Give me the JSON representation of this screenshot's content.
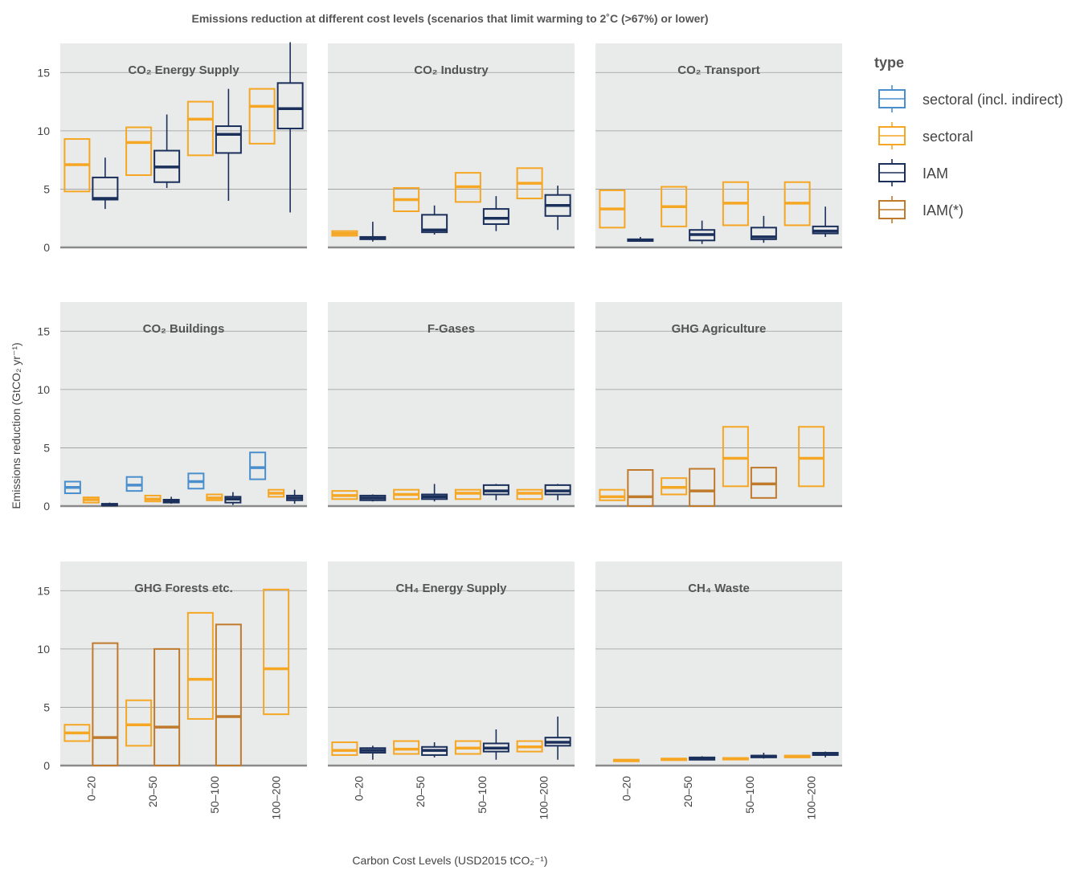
{
  "chart_data": {
    "type": "box",
    "title": "Emissions reduction at different cost levels (scenarios that limit warming to 2˚C (>67%) or lower)",
    "xlabel": "Carbon Cost Levels (USD2015 tCO₂⁻¹)",
    "ylabel": "Emissions reduction (GtCO₂ yr⁻¹)",
    "ylim": [
      0,
      17.5
    ],
    "yticks": [
      0,
      5,
      10,
      15
    ],
    "categories": [
      "0–20",
      "20–50",
      "50–100",
      "100–200"
    ],
    "legend": {
      "title": "type",
      "placement": "right",
      "entries": [
        {
          "key": "sectoral_indirect",
          "label": "sectoral (incl. indirect)",
          "color": "#4a8fcd"
        },
        {
          "key": "sectoral",
          "label": "sectoral",
          "color": "#f5a623"
        },
        {
          "key": "IAM",
          "label": "IAM",
          "color": "#1b2f5b"
        },
        {
          "key": "IAM_star",
          "label": "IAM(*)",
          "color": "#c07a2c"
        }
      ]
    },
    "facets": [
      {
        "title": "CO₂ Energy Supply",
        "boxes": [
          {
            "cat": 0,
            "type": "sectoral",
            "q1": 4.8,
            "median": 7.1,
            "q3": 9.3
          },
          {
            "cat": 0,
            "type": "IAM",
            "min": 3.3,
            "q1": 4.1,
            "median": 4.2,
            "q3": 6.0,
            "max": 7.7
          },
          {
            "cat": 1,
            "type": "sectoral",
            "q1": 6.2,
            "median": 9.0,
            "q3": 10.3
          },
          {
            "cat": 1,
            "type": "IAM",
            "min": 5.1,
            "q1": 5.6,
            "median": 6.9,
            "q3": 8.3,
            "max": 11.4
          },
          {
            "cat": 2,
            "type": "sectoral",
            "q1": 7.9,
            "median": 11.0,
            "q3": 12.5
          },
          {
            "cat": 2,
            "type": "IAM",
            "min": 4.0,
            "q1": 8.1,
            "median": 9.7,
            "q3": 10.4,
            "max": 13.6
          },
          {
            "cat": 3,
            "type": "sectoral",
            "q1": 8.9,
            "median": 12.1,
            "q3": 13.6
          },
          {
            "cat": 3,
            "type": "IAM",
            "min": 3.0,
            "q1": 10.2,
            "median": 11.9,
            "q3": 14.1,
            "max": 17.6
          }
        ]
      },
      {
        "title": "CO₂ Industry",
        "boxes": [
          {
            "cat": 0,
            "type": "sectoral",
            "q1": 1.0,
            "median": 1.2,
            "q3": 1.4
          },
          {
            "cat": 0,
            "type": "IAM",
            "min": 0.5,
            "q1": 0.7,
            "median": 0.8,
            "q3": 0.9,
            "max": 2.2
          },
          {
            "cat": 1,
            "type": "sectoral",
            "q1": 3.1,
            "median": 4.1,
            "q3": 5.1
          },
          {
            "cat": 1,
            "type": "IAM",
            "min": 1.1,
            "q1": 1.3,
            "median": 1.5,
            "q3": 2.8,
            "max": 3.6
          },
          {
            "cat": 2,
            "type": "sectoral",
            "q1": 3.9,
            "median": 5.2,
            "q3": 6.4
          },
          {
            "cat": 2,
            "type": "IAM",
            "min": 1.4,
            "q1": 2.0,
            "median": 2.5,
            "q3": 3.3,
            "max": 4.4
          },
          {
            "cat": 3,
            "type": "sectoral",
            "q1": 4.2,
            "median": 5.5,
            "q3": 6.8
          },
          {
            "cat": 3,
            "type": "IAM",
            "min": 1.5,
            "q1": 2.7,
            "median": 3.6,
            "q3": 4.5,
            "max": 5.3
          }
        ]
      },
      {
        "title": "CO₂ Transport",
        "boxes": [
          {
            "cat": 0,
            "type": "sectoral",
            "q1": 1.7,
            "median": 3.3,
            "q3": 4.9
          },
          {
            "cat": 0,
            "type": "IAM",
            "min": 0.5,
            "q1": 0.55,
            "median": 0.6,
            "q3": 0.7,
            "max": 0.9
          },
          {
            "cat": 1,
            "type": "sectoral",
            "q1": 1.8,
            "median": 3.5,
            "q3": 5.2
          },
          {
            "cat": 1,
            "type": "IAM",
            "min": 0.3,
            "q1": 0.6,
            "median": 1.1,
            "q3": 1.5,
            "max": 2.3
          },
          {
            "cat": 2,
            "type": "sectoral",
            "q1": 1.9,
            "median": 3.8,
            "q3": 5.6
          },
          {
            "cat": 2,
            "type": "IAM",
            "min": 0.4,
            "q1": 0.7,
            "median": 0.9,
            "q3": 1.7,
            "max": 2.7
          },
          {
            "cat": 3,
            "type": "sectoral",
            "q1": 1.9,
            "median": 3.8,
            "q3": 5.6
          },
          {
            "cat": 3,
            "type": "IAM",
            "min": 0.9,
            "q1": 1.2,
            "median": 1.4,
            "q3": 1.8,
            "max": 3.5
          }
        ]
      },
      {
        "title": "CO₂ Buildings",
        "boxes": [
          {
            "cat": 0,
            "type": "sectoral_indirect",
            "q1": 1.1,
            "median": 1.6,
            "q3": 2.1
          },
          {
            "cat": 0,
            "type": "sectoral",
            "q1": 0.3,
            "median": 0.55,
            "q3": 0.75
          },
          {
            "cat": 0,
            "type": "IAM",
            "min": 0.0,
            "q1": 0.05,
            "median": 0.1,
            "q3": 0.2,
            "max": 0.3
          },
          {
            "cat": 1,
            "type": "sectoral_indirect",
            "q1": 1.3,
            "median": 1.8,
            "q3": 2.5
          },
          {
            "cat": 1,
            "type": "sectoral",
            "q1": 0.4,
            "median": 0.6,
            "q3": 0.9
          },
          {
            "cat": 1,
            "type": "IAM",
            "min": 0.2,
            "q1": 0.3,
            "median": 0.4,
            "q3": 0.55,
            "max": 0.8
          },
          {
            "cat": 2,
            "type": "sectoral_indirect",
            "q1": 1.5,
            "median": 2.1,
            "q3": 2.8
          },
          {
            "cat": 2,
            "type": "sectoral",
            "q1": 0.5,
            "median": 0.7,
            "q3": 1.0
          },
          {
            "cat": 2,
            "type": "IAM",
            "min": 0.1,
            "q1": 0.3,
            "median": 0.6,
            "q3": 0.8,
            "max": 1.2
          },
          {
            "cat": 3,
            "type": "sectoral_indirect",
            "q1": 2.3,
            "median": 3.3,
            "q3": 4.6
          },
          {
            "cat": 3,
            "type": "sectoral",
            "q1": 0.8,
            "median": 1.1,
            "q3": 1.4
          },
          {
            "cat": 3,
            "type": "IAM",
            "min": 0.2,
            "q1": 0.5,
            "median": 0.7,
            "q3": 0.9,
            "max": 1.4
          }
        ]
      },
      {
        "title": "F-Gases",
        "boxes": [
          {
            "cat": 0,
            "type": "sectoral",
            "q1": 0.6,
            "median": 0.9,
            "q3": 1.3
          },
          {
            "cat": 0,
            "type": "IAM",
            "min": 0.4,
            "q1": 0.5,
            "median": 0.7,
            "q3": 0.9,
            "max": 1.0
          },
          {
            "cat": 1,
            "type": "sectoral",
            "q1": 0.6,
            "median": 1.0,
            "q3": 1.4
          },
          {
            "cat": 1,
            "type": "IAM",
            "min": 0.4,
            "q1": 0.6,
            "median": 0.8,
            "q3": 1.0,
            "max": 1.9
          },
          {
            "cat": 2,
            "type": "sectoral",
            "q1": 0.6,
            "median": 1.1,
            "q3": 1.4
          },
          {
            "cat": 2,
            "type": "IAM",
            "min": 0.5,
            "q1": 1.0,
            "median": 1.3,
            "q3": 1.8,
            "max": 1.9
          },
          {
            "cat": 3,
            "type": "sectoral",
            "q1": 0.6,
            "median": 1.1,
            "q3": 1.4
          },
          {
            "cat": 3,
            "type": "IAM",
            "min": 0.5,
            "q1": 1.0,
            "median": 1.3,
            "q3": 1.8,
            "max": 1.9
          }
        ]
      },
      {
        "title": "GHG Agriculture",
        "boxes": [
          {
            "cat": 0,
            "type": "sectoral",
            "q1": 0.5,
            "median": 0.8,
            "q3": 1.4
          },
          {
            "cat": 0,
            "type": "IAM_star",
            "q1": 0.0,
            "median": 0.8,
            "q3": 3.1
          },
          {
            "cat": 1,
            "type": "sectoral",
            "q1": 1.0,
            "median": 1.6,
            "q3": 2.4
          },
          {
            "cat": 1,
            "type": "IAM_star",
            "q1": 0.0,
            "median": 1.3,
            "q3": 3.2
          },
          {
            "cat": 2,
            "type": "sectoral",
            "q1": 1.7,
            "median": 4.1,
            "q3": 6.8
          },
          {
            "cat": 2,
            "type": "IAM_star",
            "q1": 0.7,
            "median": 1.9,
            "q3": 3.3
          },
          {
            "cat": 3,
            "type": "sectoral",
            "q1": 1.7,
            "median": 4.1,
            "q3": 6.8
          }
        ]
      },
      {
        "title": "GHG Forests etc.",
        "boxes": [
          {
            "cat": 0,
            "type": "sectoral",
            "q1": 2.1,
            "median": 2.8,
            "q3": 3.5
          },
          {
            "cat": 0,
            "type": "IAM_star",
            "q1": 0.0,
            "median": 2.4,
            "q3": 10.5
          },
          {
            "cat": 1,
            "type": "sectoral",
            "q1": 1.7,
            "median": 3.5,
            "q3": 5.6
          },
          {
            "cat": 1,
            "type": "IAM_star",
            "q1": 0.0,
            "median": 3.3,
            "q3": 10.0
          },
          {
            "cat": 2,
            "type": "sectoral",
            "q1": 4.0,
            "median": 7.4,
            "q3": 13.1
          },
          {
            "cat": 2,
            "type": "IAM_star",
            "q1": 0.0,
            "median": 4.2,
            "q3": 12.1
          },
          {
            "cat": 3,
            "type": "sectoral",
            "q1": 4.4,
            "median": 8.3,
            "q3": 15.1
          }
        ]
      },
      {
        "title": "CH₄ Energy Supply",
        "boxes": [
          {
            "cat": 0,
            "type": "sectoral",
            "q1": 0.9,
            "median": 1.3,
            "q3": 2.0
          },
          {
            "cat": 0,
            "type": "IAM",
            "min": 0.5,
            "q1": 1.1,
            "median": 1.3,
            "q3": 1.5,
            "max": 1.7
          },
          {
            "cat": 1,
            "type": "sectoral",
            "q1": 1.0,
            "median": 1.4,
            "q3": 2.1
          },
          {
            "cat": 1,
            "type": "IAM",
            "min": 0.7,
            "q1": 0.9,
            "median": 1.3,
            "q3": 1.6,
            "max": 2.0
          },
          {
            "cat": 2,
            "type": "sectoral",
            "q1": 1.0,
            "median": 1.5,
            "q3": 2.1
          },
          {
            "cat": 2,
            "type": "IAM",
            "min": 0.5,
            "q1": 1.2,
            "median": 1.5,
            "q3": 1.9,
            "max": 3.1
          },
          {
            "cat": 3,
            "type": "sectoral",
            "q1": 1.2,
            "median": 1.6,
            "q3": 2.1
          },
          {
            "cat": 3,
            "type": "IAM",
            "min": 0.5,
            "q1": 1.7,
            "median": 2.0,
            "q3": 2.4,
            "max": 4.2
          }
        ]
      },
      {
        "title": "CH₄ Waste",
        "boxes": [
          {
            "cat": 0,
            "type": "sectoral",
            "q1": 0.4,
            "median": 0.45,
            "q3": 0.5
          },
          {
            "cat": 1,
            "type": "sectoral",
            "q1": 0.5,
            "median": 0.55,
            "q3": 0.6
          },
          {
            "cat": 1,
            "type": "IAM",
            "min": 0.45,
            "q1": 0.5,
            "median": 0.6,
            "q3": 0.7,
            "max": 0.8
          },
          {
            "cat": 2,
            "type": "sectoral",
            "q1": 0.55,
            "median": 0.6,
            "q3": 0.65
          },
          {
            "cat": 2,
            "type": "IAM",
            "min": 0.6,
            "q1": 0.7,
            "median": 0.8,
            "q3": 0.85,
            "max": 1.1
          },
          {
            "cat": 3,
            "type": "sectoral",
            "q1": 0.7,
            "median": 0.8,
            "q3": 0.85
          },
          {
            "cat": 3,
            "type": "IAM",
            "min": 0.7,
            "q1": 0.9,
            "median": 1.0,
            "q3": 1.1,
            "max": 1.2
          }
        ]
      }
    ]
  }
}
